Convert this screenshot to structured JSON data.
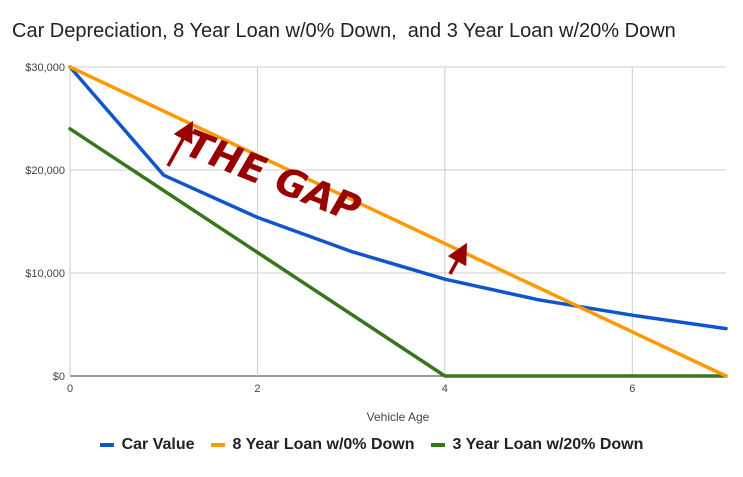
{
  "chart_data": {
    "type": "line",
    "title": "Car Depreciation, 8 Year Loan w/0% Down,  and 3 Year Loan w/20% Down",
    "xlabel": "Vehicle Age",
    "ylabel": "",
    "xlim": [
      0,
      7
    ],
    "ylim": [
      0,
      30000
    ],
    "x_ticks": [
      "0",
      "2",
      "4",
      "6"
    ],
    "y_ticks": [
      "$0",
      "$10,000",
      "$20,000",
      "$30,000"
    ],
    "grid": true,
    "legend_position": "bottom",
    "series": [
      {
        "name": "Car Value",
        "color": "#1155CC",
        "x": [
          0,
          1,
          2,
          3,
          4,
          5,
          6,
          7
        ],
        "values": [
          30000,
          19500,
          15400,
          12100,
          9400,
          7400,
          5900,
          4600
        ]
      },
      {
        "name": "8 Year Loan w/0% Down",
        "color": "#FF9900",
        "x": [
          0,
          7
        ],
        "values": [
          30000,
          0
        ]
      },
      {
        "name": "3 Year Loan w/20% Down",
        "color": "#38761D",
        "x": [
          0,
          4,
          7
        ],
        "values": [
          24000,
          0,
          0
        ]
      }
    ],
    "annotations": {
      "text": "THE GAP",
      "color": "#990000"
    }
  }
}
